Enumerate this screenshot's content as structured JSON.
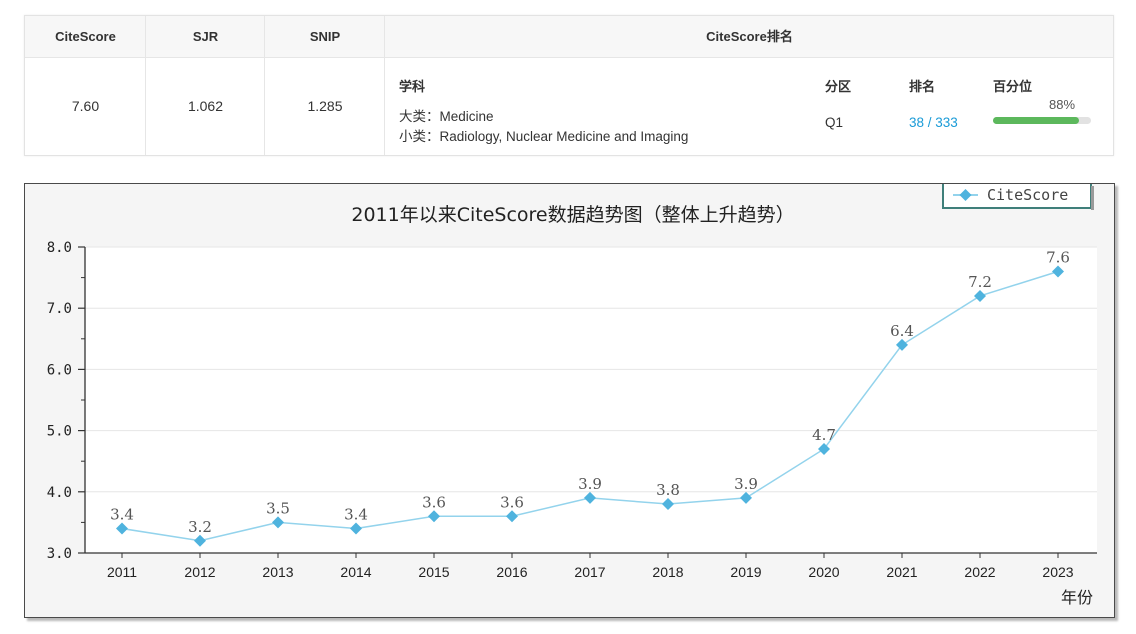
{
  "metrics": {
    "headers": {
      "citescore": "CiteScore",
      "sjr": "SJR",
      "snip": "SNIP",
      "rank": "CiteScore排名"
    },
    "values": {
      "citescore": "7.60",
      "sjr": "1.062",
      "snip": "1.285"
    },
    "rank": {
      "subject_label": "学科",
      "zone_label": "分区",
      "rank_label": "排名",
      "percentile_label": "百分位",
      "major": "大类：Medicine",
      "minor": "小类：Radiology, Nuclear Medicine and Imaging",
      "zone": "Q1",
      "rank": "38 / 333",
      "percentile_text": "88%",
      "percentile_value": 0.88
    }
  },
  "chart_data": {
    "type": "line",
    "title": "2011年以来CiteScore数据趋势图（整体上升趋势）",
    "xlabel": "年份",
    "ylabel": "",
    "categories": [
      "2011",
      "2012",
      "2013",
      "2014",
      "2015",
      "2016",
      "2017",
      "2018",
      "2019",
      "2020",
      "2021",
      "2022",
      "2023"
    ],
    "series": [
      {
        "name": "CiteScore",
        "values": [
          3.4,
          3.2,
          3.5,
          3.4,
          3.6,
          3.6,
          3.9,
          3.8,
          3.9,
          4.7,
          6.4,
          7.2,
          7.6
        ],
        "labels": [
          "3.4",
          "3.2",
          "3.5",
          "3.4",
          "3.6",
          "3.6",
          "3.9",
          "3.8",
          "3.9",
          "4.7",
          "6.4",
          "7.2",
          "7.6"
        ]
      }
    ],
    "yticks": [
      "3.0",
      "4.0",
      "5.0",
      "6.0",
      "7.0",
      "8.0"
    ],
    "ylim": [
      3,
      8
    ],
    "grid": true,
    "legend": "top-right",
    "colors": {
      "line": "#93d3ec",
      "marker": "#4fb3de",
      "legend_border": "#3f7f7a"
    }
  }
}
